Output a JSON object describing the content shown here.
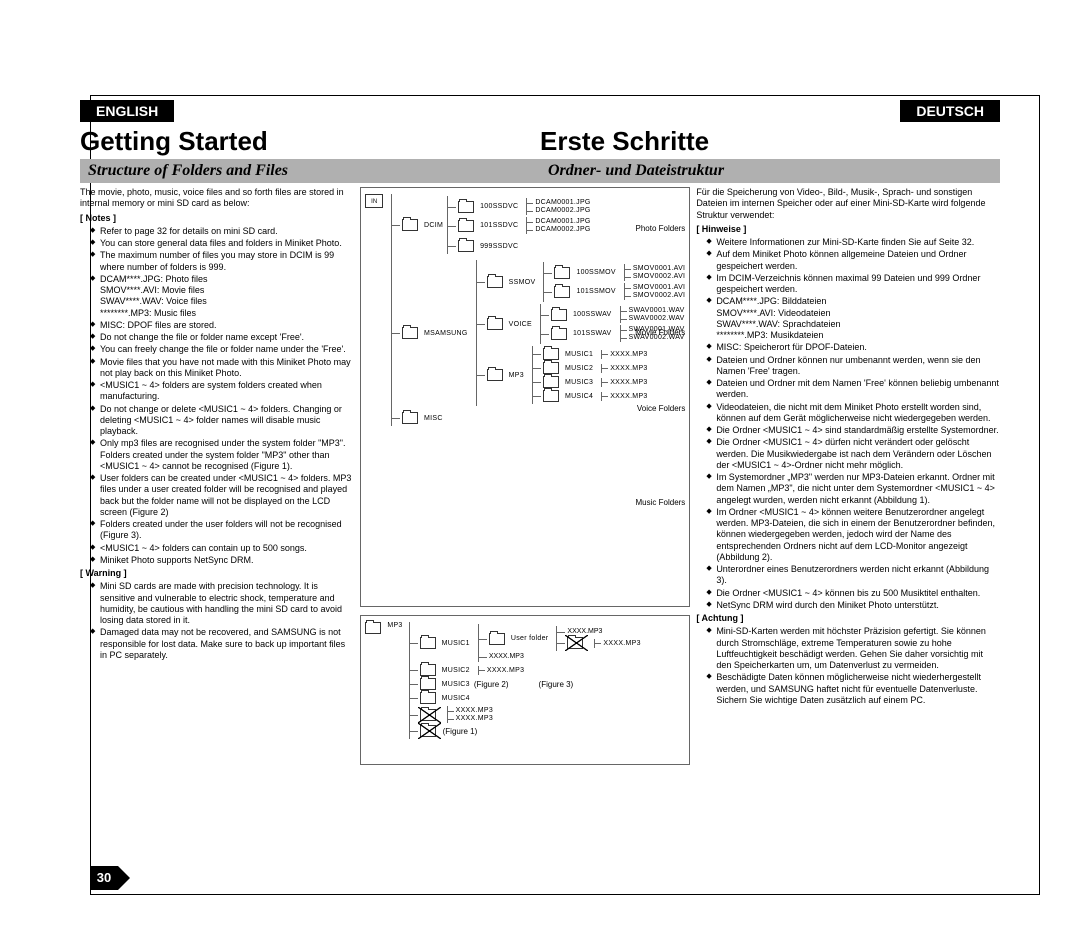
{
  "lang": {
    "left": "ENGLISH",
    "right": "DEUTSCH"
  },
  "titles": {
    "left_main": "Getting Started",
    "right_main": "Erste Schritte",
    "left_sub": "Structure of Folders and Files",
    "right_sub": "Ordner- und Dateistruktur"
  },
  "left": {
    "intro": "The movie, photo, music, voice files and so forth files are stored in internal memory or mini SD card as below:",
    "notes_label": "[ Notes ]",
    "notes": [
      "Refer to page 32 for details on mini SD card.",
      "You can store general data files and folders in Miniket Photo.",
      "The maximum number of files you may store in DCIM is 99 where number of folders is 999.",
      "DCAM****.JPG: Photo files\nSMOV****.AVI: Movie files\nSWAV****.WAV: Voice files\n********.MP3: Music files",
      "MISC: DPOF files are stored.",
      "Do not change the file or folder name except 'Free'.",
      "You can freely change the file or folder name under the 'Free'.",
      "Movie files that you have not made with this Miniket Photo may not play back on this Miniket Photo.",
      "<MUSIC1 ~ 4> folders are system folders created when manufacturing.",
      "Do not change or delete <MUSIC1 ~ 4> folders. Changing or deleting <MUSIC1 ~ 4> folder names will disable music playback.",
      "Only mp3 files are recognised under the system folder \"MP3\". Folders created under the system folder \"MP3\" other than <MUSIC1 ~ 4> cannot be recognised (Figure 1).",
      "User folders can be created under <MUSIC1 ~ 4> folders. MP3 files under a user created folder will be recognised and played back but the folder name will not be displayed on the LCD screen (Figure 2)",
      "Folders created under the user folders will not be recognised (Figure 3).",
      "<MUSIC1 ~ 4> folders can contain up to 500 songs.",
      "Miniket Photo supports NetSync DRM."
    ],
    "warning_label": "[ Warning ]",
    "warnings": [
      "Mini SD cards are made with precision technology. It is sensitive and vulnerable to electric shock, temperature and humidity, be cautious with handling the mini SD card to avoid losing data stored in it.",
      "Damaged data may not be recovered, and SAMSUNG is not responsible for lost data. Make sure to back up important files in PC separately."
    ]
  },
  "right": {
    "intro": "Für die Speicherung von Video-, Bild-, Musik-, Sprach- und sonstigen Dateien im internen Speicher oder auf einer Mini-SD-Karte wird folgende Struktur verwendet:",
    "notes_label": "[ Hinweise ]",
    "notes": [
      "Weitere Informationen zur Mini-SD-Karte finden Sie auf Seite 32.",
      "Auf dem Miniket Photo können allgemeine Dateien und Ordner gespeichert werden.",
      "Im DCIM-Verzeichnis können maximal 99 Dateien und 999 Ordner gespeichert werden.",
      "DCAM****.JPG: Bilddateien\nSMOV****.AVI: Videodateien\nSWAV****.WAV: Sprachdateien\n********.MP3: Musikdateien",
      "MISC: Speicherort für DPOF-Dateien.",
      "Dateien und Ordner können nur umbenannt werden, wenn sie den Namen 'Free' tragen.",
      "Dateien und Ordner mit dem Namen 'Free' können beliebig umbenannt werden.",
      "Videodateien, die nicht mit dem Miniket Photo erstellt worden sind, können auf dem Gerät möglicherweise nicht wiedergegeben werden.",
      "Die Ordner <MUSIC1 ~ 4> sind standardmäßig erstellte Systemordner.",
      "Die Ordner <MUSIC1 ~ 4> dürfen nicht verändert oder gelöscht werden. Die Musikwiedergabe ist nach dem Verändern oder Löschen der <MUSIC1 ~ 4>-Ordner nicht mehr möglich.",
      "Im Systemordner „MP3\" werden nur MP3-Dateien erkannt. Ordner mit dem Namen „MP3\", die nicht unter dem Systemordner <MUSIC1 ~ 4> angelegt wurden, werden nicht erkannt (Abbildung 1).",
      "Im Ordner <MUSIC1 ~ 4> können weitere Benutzerordner angelegt werden. MP3-Dateien, die sich in einem der Benutzerordner befinden, können wiedergegeben werden, jedoch wird der Name des entsprechenden Ordners nicht auf dem LCD-Monitor angezeigt (Abbildung 2).",
      "Unterordner eines Benutzerordners werden nicht erkannt (Abbildung 3).",
      "Die Ordner <MUSIC1 ~ 4> können bis zu 500 Musiktitel enthalten.",
      "NetSync DRM wird durch den Miniket Photo unterstützt."
    ],
    "warning_label": "[ Achtung ]",
    "warnings": [
      "Mini-SD-Karten werden mit höchster Präzision gefertigt. Sie können durch Stromschläge, extreme Temperaturen sowie zu hohe Luftfeuchtigkeit beschädigt werden. Gehen Sie daher vorsichtig mit den Speicherkarten um, um Datenverlust zu vermeiden.",
      "Beschädigte Daten können möglicherweise nicht wiederhergestellt werden, und SAMSUNG haftet nicht für eventuelle Datenverluste. Sichern Sie wichtige Daten zusätzlich auf einem PC."
    ]
  },
  "tree": {
    "mem": "IN",
    "side_labels": {
      "photo": "Photo Folders",
      "movie": "Movie Folders",
      "voice": "Voice Folders",
      "music": "Music Folders"
    },
    "dcim": "DCIM",
    "dcim_folders": [
      "100SSDVC",
      "101SSDVC",
      "999SSDVC"
    ],
    "dcim_files": [
      "DCAM0001.JPG",
      "DCAM0002.JPG",
      "DCAM0001.JPG",
      "DCAM0002.JPG"
    ],
    "msamsung": "MSAMSUNG",
    "ssmov": "SSMOV",
    "ssmov_folders": [
      "100SSMOV",
      "101SSMOV"
    ],
    "ssmov_files": [
      "SMOV0001.AVI",
      "SMOV0002.AVI",
      "SMOV0001.AVI",
      "SMOV0002.AVI"
    ],
    "voice": "VOICE",
    "voice_folders": [
      "100SSWAV",
      "101SSWAV"
    ],
    "voice_files": [
      "SWAV0001.WAV",
      "SWAV0002.WAV",
      "SWAV0001.WAV",
      "SWAV0002.WAV"
    ],
    "mp3": "MP3",
    "music_folders": [
      "MUSIC1",
      "MUSIC2",
      "MUSIC3",
      "MUSIC4"
    ],
    "mp3_file": "XXXX.MP3",
    "misc": "MISC",
    "user_folder": "User folder",
    "fig1": "(Figure 1)",
    "fig2": "(Figure 2)",
    "fig3": "(Figure 3)"
  },
  "page_number": "30"
}
